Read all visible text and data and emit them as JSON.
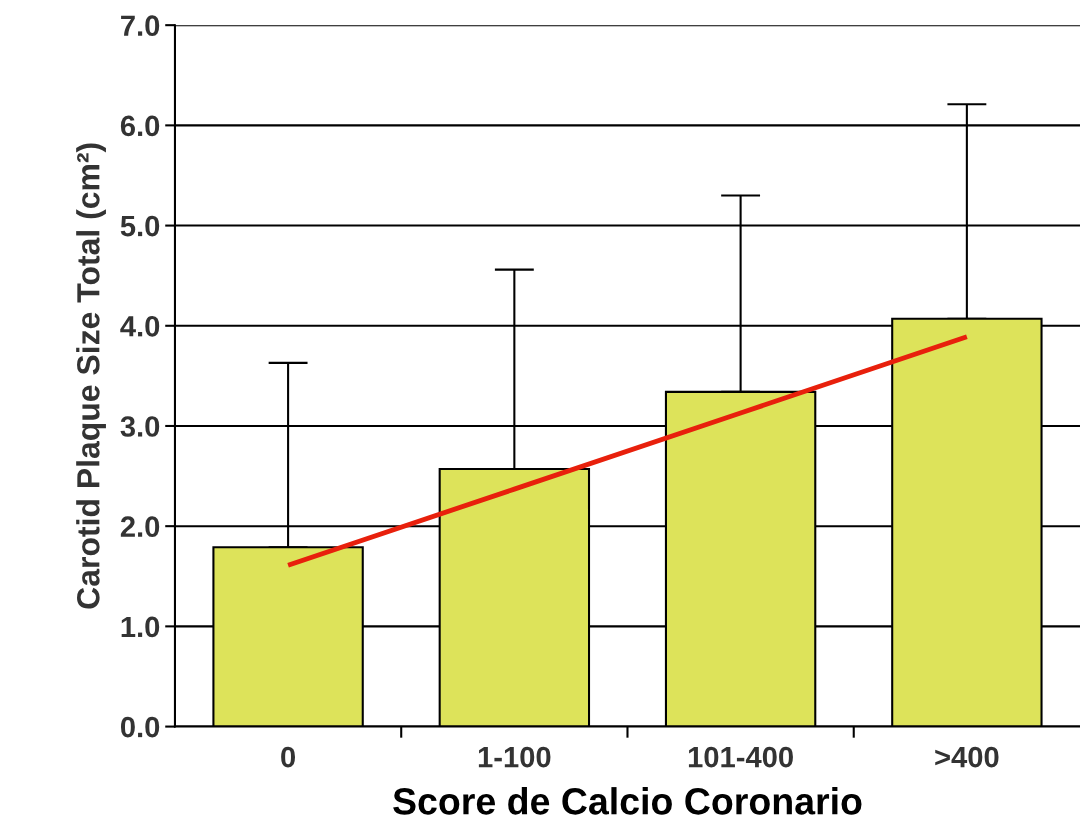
{
  "chart_data": {
    "type": "bar",
    "xlabel": "Score de Calcio Coronario",
    "ylabel": "Carotid Plaque Size Total (cm²)",
    "categories": [
      "0",
      "1-100",
      "101-400",
      ">400"
    ],
    "series": [
      {
        "color": "#dde35a",
        "values": [
          1.79,
          2.57,
          3.34,
          4.07
        ],
        "errors": [
          [
            1.79,
            3.63
          ],
          [
            2.57,
            4.56
          ],
          [
            3.34,
            5.3
          ],
          [
            4.07,
            6.21
          ]
        ]
      },
      {
        "type": "line",
        "color": "#e8200c",
        "values": [
          1.61,
          2.37,
          3.13,
          3.89
        ]
      }
    ],
    "ylim": [
      0,
      7
    ],
    "yticks": [
      {
        "value": 0,
        "label": "0.0"
      },
      {
        "value": 1,
        "label": "1.0"
      },
      {
        "value": 2,
        "label": "2.0"
      },
      {
        "value": 3,
        "label": "3.0"
      },
      {
        "value": 4,
        "label": "4.0"
      },
      {
        "value": 5,
        "label": "5.0"
      },
      {
        "value": 6,
        "label": "6.0"
      },
      {
        "value": 7,
        "label": "7.0"
      }
    ],
    "grid": "y",
    "legend": false
  }
}
